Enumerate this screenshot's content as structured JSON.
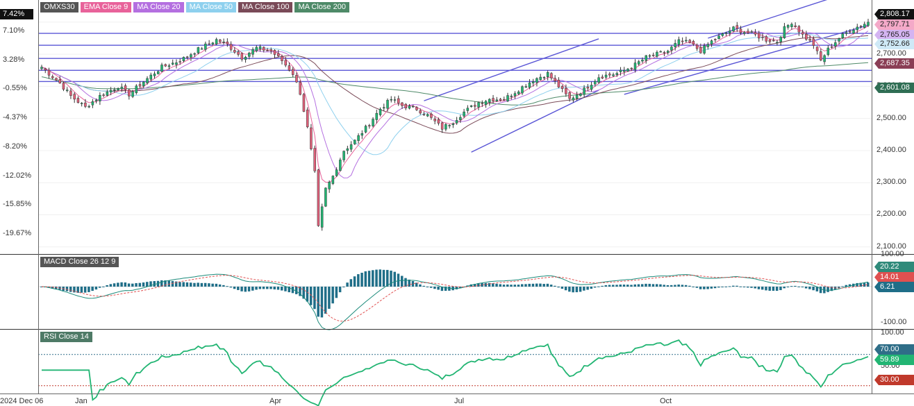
{
  "chart_data": {
    "type": "candlestick",
    "symbol": "OMXS30",
    "x_ticks": [
      "2024 Dec 06",
      "Jan",
      "Apr",
      "Jul",
      "Oct"
    ],
    "price_axis": {
      "ticks": [
        "2,800.00",
        "2,700.00",
        "2,600.00",
        "2,500.00",
        "2,400.00",
        "2,300.00",
        "2,200.00",
        "2,100.00"
      ],
      "range": [
        2080,
        2830
      ]
    },
    "percent_axis": {
      "ticks": [
        "7.10%",
        "3.28%",
        "-0.55%",
        "-4.37%",
        "-8.20%",
        "-12.02%",
        "-15.85%",
        "-19.67%"
      ],
      "current": "7.42%"
    },
    "legend": [
      {
        "label": "OMXS30",
        "color": "#555555"
      },
      {
        "label": "EMA  Close 9",
        "color": "#e8629a"
      },
      {
        "label": "MA  Close 20",
        "color": "#b46fe0"
      },
      {
        "label": "MA  Close 50",
        "color": "#8ed0ee"
      },
      {
        "label": "MA  Close 100",
        "color": "#7a4a58"
      },
      {
        "label": "MA  Close 200",
        "color": "#4e8a68"
      }
    ],
    "price_tags": [
      {
        "value": "2,808.17",
        "bg": "#111111",
        "fg": "#ffffff"
      },
      {
        "value": "2,797.71",
        "bg": "#f4a9c8",
        "fg": "#222222"
      },
      {
        "value": "2,765.05",
        "bg": "#d4b4f2",
        "fg": "#222222"
      },
      {
        "value": "2,752.66",
        "bg": "#cfe9f6",
        "fg": "#222222"
      },
      {
        "value": "2,687.35",
        "bg": "#8a3e55",
        "fg": "#ffffff"
      },
      {
        "value": "2,601.08",
        "bg": "#2f6e54",
        "fg": "#ffffff"
      }
    ],
    "macd": {
      "title": "MACD  Close 26 12 9",
      "axis_ticks": [
        "100.00",
        "-100.00"
      ],
      "tags": [
        {
          "value": "20.22",
          "bg": "#2f8a7a",
          "fg": "#ffffff"
        },
        {
          "value": "14.01",
          "bg": "#e05050",
          "fg": "#ffffff"
        },
        {
          "value": "6.21",
          "bg": "#1f6e88",
          "fg": "#ffffff"
        }
      ]
    },
    "rsi": {
      "title": "RSI  Close 14",
      "axis_ticks": [
        "100.00",
        "70.00",
        "50.00",
        "30.00"
      ],
      "tags": [
        {
          "value": "70.00",
          "bg": "#2f6e88",
          "fg": "#ffffff"
        },
        {
          "value": "59.89",
          "bg": "#22b573",
          "fg": "#ffffff"
        },
        {
          "value": "30.00",
          "bg": "#c0392b",
          "fg": "#ffffff"
        }
      ],
      "upper": 70,
      "lower": 30
    },
    "horizontal_levels": [
      2765,
      2728,
      2687,
      2650,
      2615
    ],
    "anchors": [
      [
        0,
        2660
      ],
      [
        5,
        2610
      ],
      [
        8,
        2570
      ],
      [
        12,
        2535
      ],
      [
        16,
        2570
      ],
      [
        21,
        2600
      ],
      [
        24,
        2575
      ],
      [
        28,
        2615
      ],
      [
        33,
        2660
      ],
      [
        38,
        2680
      ],
      [
        43,
        2715
      ],
      [
        48,
        2745
      ],
      [
        51,
        2730
      ],
      [
        55,
        2690
      ],
      [
        59,
        2720
      ],
      [
        63,
        2710
      ],
      [
        66,
        2680
      ],
      [
        69,
        2640
      ],
      [
        71,
        2580
      ],
      [
        73,
        2470
      ],
      [
        75,
        2330
      ],
      [
        76,
        2160
      ],
      [
        78,
        2280
      ],
      [
        80,
        2320
      ],
      [
        83,
        2400
      ],
      [
        86,
        2430
      ],
      [
        89,
        2470
      ],
      [
        93,
        2530
      ],
      [
        96,
        2560
      ],
      [
        99,
        2540
      ],
      [
        103,
        2530
      ],
      [
        106,
        2510
      ],
      [
        110,
        2470
      ],
      [
        113,
        2490
      ],
      [
        116,
        2520
      ],
      [
        120,
        2550
      ],
      [
        123,
        2560
      ],
      [
        127,
        2560
      ],
      [
        131,
        2590
      ],
      [
        135,
        2620
      ],
      [
        139,
        2640
      ],
      [
        142,
        2600
      ],
      [
        145,
        2560
      ],
      [
        149,
        2590
      ],
      [
        153,
        2630
      ],
      [
        158,
        2640
      ],
      [
        162,
        2660
      ],
      [
        166,
        2690
      ],
      [
        169,
        2700
      ],
      [
        172,
        2710
      ],
      [
        175,
        2740
      ],
      [
        178,
        2735
      ],
      [
        181,
        2710
      ],
      [
        184,
        2740
      ],
      [
        187,
        2760
      ],
      [
        190,
        2780
      ],
      [
        193,
        2770
      ],
      [
        196,
        2760
      ],
      [
        199,
        2745
      ],
      [
        202,
        2740
      ],
      [
        204,
        2780
      ],
      [
        206,
        2800
      ],
      [
        209,
        2760
      ],
      [
        212,
        2730
      ],
      [
        214,
        2680
      ],
      [
        216,
        2715
      ],
      [
        219,
        2750
      ],
      [
        222,
        2775
      ],
      [
        225,
        2790
      ],
      [
        227,
        2800
      ]
    ],
    "ma_params": {
      "ema": 9,
      "ma20": 20,
      "ma50": 50,
      "ma100": 100,
      "ma200": 200
    }
  }
}
